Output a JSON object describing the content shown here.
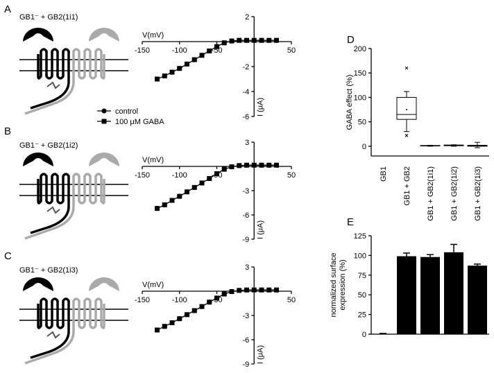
{
  "chart_data": [
    {
      "type": "line",
      "label": "A",
      "title": "GB1⁻ + GB2(1i1)",
      "xlabel": "V(mV)",
      "ylabel": "I (μA)",
      "x": [
        -130,
        -120,
        -110,
        -100,
        -90,
        -80,
        -70,
        -60,
        -50,
        -40,
        -30,
        -20,
        -10,
        0,
        10,
        20,
        30
      ],
      "xlim": [
        -150,
        50
      ],
      "xticks": [
        -150,
        -100,
        -50,
        50
      ],
      "ylim": [
        -6,
        2
      ],
      "yticks": [
        2,
        -2,
        -4,
        -6
      ],
      "series": [
        {
          "name": "control",
          "marker": "circle",
          "color": "#000000",
          "values": [
            -3.0,
            -2.75,
            -2.45,
            -2.15,
            -1.8,
            -1.45,
            -1.1,
            -0.75,
            -0.4,
            -0.1,
            0.05,
            0.1,
            0.1,
            0.1,
            0.1,
            0.1,
            0.1
          ]
        },
        {
          "name": "100 μM GABA",
          "marker": "square",
          "color": "#000000",
          "values": [
            -3.0,
            -2.75,
            -2.45,
            -2.15,
            -1.8,
            -1.45,
            -1.1,
            -0.75,
            -0.4,
            -0.1,
            0.05,
            0.1,
            0.1,
            0.1,
            0.1,
            0.1,
            0.1
          ]
        }
      ]
    },
    {
      "type": "line",
      "label": "B",
      "title": "GB1⁻ + GB2(1i2)",
      "xlabel": "V(mV)",
      "ylabel": "I (μA)",
      "x": [
        -130,
        -120,
        -110,
        -100,
        -90,
        -80,
        -70,
        -60,
        -50,
        -40,
        -30,
        -20,
        -10,
        0,
        10,
        20,
        30
      ],
      "xlim": [
        -150,
        50
      ],
      "xticks": [
        -150,
        -100,
        -50,
        50
      ],
      "ylim": [
        -9,
        3
      ],
      "yticks": [
        3,
        -3,
        -6,
        -9
      ],
      "series": [
        {
          "marker": "circle",
          "color": "#000000",
          "values": [
            -5.2,
            -4.75,
            -4.2,
            -3.7,
            -3.15,
            -2.6,
            -2.05,
            -1.5,
            -0.9,
            -0.35,
            -0.05,
            0.1,
            0.15,
            0.15,
            0.15,
            0.15,
            0.15
          ]
        },
        {
          "marker": "square",
          "color": "#000000",
          "values": [
            -5.2,
            -4.75,
            -4.2,
            -3.7,
            -3.15,
            -2.6,
            -2.05,
            -1.5,
            -0.9,
            -0.35,
            -0.05,
            0.1,
            0.15,
            0.15,
            0.15,
            0.15,
            0.15
          ]
        }
      ]
    },
    {
      "type": "line",
      "label": "C",
      "title": "GB1⁻ + GB2(1i3)",
      "xlabel": "V(mV)",
      "ylabel": "I (μA)",
      "x": [
        -130,
        -120,
        -110,
        -100,
        -90,
        -80,
        -70,
        -60,
        -50,
        -40,
        -30,
        -20,
        -10,
        0,
        10,
        20,
        30
      ],
      "xlim": [
        -150,
        50
      ],
      "xticks": [
        -150,
        -100,
        -50,
        50
      ],
      "ylim": [
        -9,
        3
      ],
      "yticks": [
        3,
        -3,
        -6,
        -9
      ],
      "series": [
        {
          "marker": "circle",
          "color": "#000000",
          "values": [
            -4.8,
            -4.35,
            -3.9,
            -3.4,
            -2.9,
            -2.4,
            -1.9,
            -1.35,
            -0.85,
            -0.35,
            -0.05,
            0.1,
            0.15,
            0.15,
            0.15,
            0.15,
            0.15
          ]
        },
        {
          "marker": "square",
          "color": "#000000",
          "values": [
            -4.8,
            -4.35,
            -3.9,
            -3.4,
            -2.9,
            -2.4,
            -1.9,
            -1.35,
            -0.85,
            -0.35,
            -0.05,
            0.1,
            0.15,
            0.15,
            0.15,
            0.15,
            0.15
          ]
        }
      ]
    },
    {
      "type": "box",
      "label": "D",
      "ylabel": "GABA effect (%)",
      "categories": [
        "GB1",
        "GB1 + GB2",
        "GB1 + GB2(1i1)",
        "GB1 + GB2(1i2)",
        "GB1 + GB2(1i3)"
      ],
      "ylim": [
        -20,
        200
      ],
      "yticks": [
        0,
        50,
        100,
        150,
        200
      ],
      "boxes": [
        null,
        {
          "whisker_low": 30,
          "q1": 55,
          "median": 65,
          "q3": 100,
          "whisker_high": 112,
          "mean": 75,
          "outliers": [
            22,
            160
          ]
        },
        {
          "whisker_low": 0,
          "q1": 0.5,
          "median": 1,
          "q3": 1.5,
          "whisker_high": 2,
          "mean": 1,
          "outliers": []
        },
        {
          "whisker_low": 0,
          "q1": 1,
          "median": 2,
          "q3": 2.5,
          "whisker_high": 3,
          "mean": 2,
          "outliers": []
        },
        {
          "whisker_low": -3,
          "q1": 0,
          "median": 1,
          "q3": 2,
          "whisker_high": 8,
          "mean": 1,
          "outliers": []
        }
      ]
    },
    {
      "type": "bar",
      "label": "E",
      "ylabel": [
        "normalized surface",
        "expression (%)"
      ],
      "values": [
        0.5,
        99,
        98,
        104,
        87
      ],
      "errors": [
        0.5,
        4,
        3,
        10,
        2
      ],
      "color": "#000000",
      "ylim": [
        0,
        125
      ],
      "yticks": [
        0,
        25,
        50,
        75,
        100,
        125
      ]
    }
  ]
}
